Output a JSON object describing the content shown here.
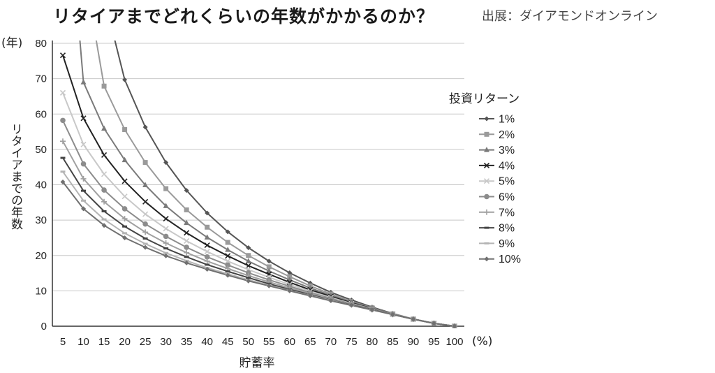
{
  "header": {
    "title": "リタイアまでどれくらいの年数がかかるのか？",
    "source": "出展：ダイアモンドオンライン"
  },
  "chart_data": {
    "type": "line",
    "title": "リタイアまでどれくらいの年数がかかるのか？",
    "xlabel": "貯蓄率",
    "xunit": "(%)",
    "ylabel": "リタイアまでの年数",
    "yunit": "(年)",
    "xlim": [
      5,
      100
    ],
    "ylim": [
      0,
      80
    ],
    "xticks": [
      5,
      10,
      15,
      20,
      25,
      30,
      35,
      40,
      45,
      50,
      55,
      60,
      65,
      70,
      75,
      80,
      85,
      90,
      95,
      100
    ],
    "yticks": [
      0,
      10,
      20,
      30,
      40,
      50,
      60,
      70,
      80
    ],
    "grid": "horizontal",
    "legend_title": "投資リターン",
    "legend_position": "right",
    "x": [
      5,
      10,
      15,
      20,
      25,
      30,
      35,
      40,
      45,
      50,
      55,
      60,
      65,
      70,
      75,
      80,
      85,
      90,
      95,
      100
    ],
    "series": [
      {
        "name": "1%",
        "color": "#555555",
        "marker": "diamond",
        "values": [
          null,
          null,
          null,
          69.7,
          56.3,
          46.3,
          38.4,
          32.0,
          26.7,
          22.2,
          18.4,
          15.1,
          12.2,
          9.6,
          7.4,
          5.4,
          3.6,
          2.0,
          0.8,
          0
        ]
      },
      {
        "name": "2%",
        "color": "#9a9a9a",
        "marker": "square",
        "values": [
          null,
          null,
          67.9,
          55.6,
          46.3,
          38.9,
          32.9,
          28.0,
          23.7,
          20.0,
          16.8,
          14.0,
          11.4,
          9.1,
          7.0,
          5.2,
          3.5,
          2.0,
          0.8,
          0
        ]
      },
      {
        "name": "3%",
        "color": "#7a7a7a",
        "marker": "triangle",
        "values": [
          null,
          69.0,
          55.9,
          47.0,
          39.9,
          34.0,
          29.2,
          25.1,
          21.6,
          18.4,
          15.6,
          13.1,
          10.8,
          8.7,
          6.8,
          5.1,
          3.5,
          2.0,
          0.8,
          0
        ]
      },
      {
        "name": "4%",
        "color": "#222222",
        "marker": "x",
        "values": [
          76.6,
          58.8,
          48.4,
          41.0,
          35.2,
          30.4,
          26.4,
          22.9,
          19.9,
          17.1,
          14.7,
          12.4,
          10.3,
          8.4,
          6.6,
          5.0,
          3.4,
          2.0,
          0.8,
          0
        ]
      },
      {
        "name": "5%",
        "color": "#c8c8c8",
        "marker": "x",
        "values": [
          66.0,
          51.4,
          43.0,
          36.7,
          31.7,
          27.6,
          24.1,
          21.1,
          18.4,
          16.0,
          13.8,
          11.8,
          9.9,
          8.1,
          6.4,
          4.9,
          3.4,
          2.0,
          0.8,
          0
        ]
      },
      {
        "name": "6%",
        "color": "#8c8c8c",
        "marker": "circle",
        "values": [
          58.2,
          45.9,
          38.5,
          33.2,
          28.9,
          25.4,
          22.3,
          19.6,
          17.3,
          15.1,
          13.1,
          11.3,
          9.5,
          7.8,
          6.3,
          4.8,
          3.4,
          2.0,
          0.8,
          0
        ]
      },
      {
        "name": "7%",
        "color": "#a0a0a0",
        "marker": "plus",
        "values": [
          52.3,
          41.7,
          35.2,
          30.4,
          26.6,
          23.5,
          20.8,
          18.4,
          16.3,
          14.3,
          12.5,
          10.8,
          9.2,
          7.6,
          6.2,
          4.7,
          3.3,
          2.0,
          0.8,
          0
        ]
      },
      {
        "name": "8%",
        "color": "#444444",
        "marker": "dash",
        "values": [
          47.6,
          38.3,
          32.5,
          28.2,
          24.8,
          22.0,
          19.6,
          17.4,
          15.5,
          13.7,
          12.0,
          10.4,
          8.9,
          7.4,
          6.0,
          4.7,
          3.3,
          2.0,
          0.8,
          0
        ]
      },
      {
        "name": "9%",
        "color": "#b4b4b4",
        "marker": "dash",
        "values": [
          43.7,
          35.5,
          30.2,
          26.3,
          23.3,
          20.7,
          18.5,
          16.5,
          14.8,
          13.1,
          11.6,
          10.1,
          8.7,
          7.3,
          5.9,
          4.6,
          3.3,
          2.0,
          0.8,
          0
        ]
      },
      {
        "name": "10%",
        "color": "#707070",
        "marker": "diamond",
        "values": [
          40.8,
          33.2,
          28.5,
          25.0,
          22.3,
          19.9,
          17.9,
          16.1,
          14.4,
          12.8,
          11.4,
          10.0,
          8.6,
          7.2,
          5.9,
          4.6,
          3.3,
          2.0,
          0.8,
          0
        ]
      }
    ]
  }
}
